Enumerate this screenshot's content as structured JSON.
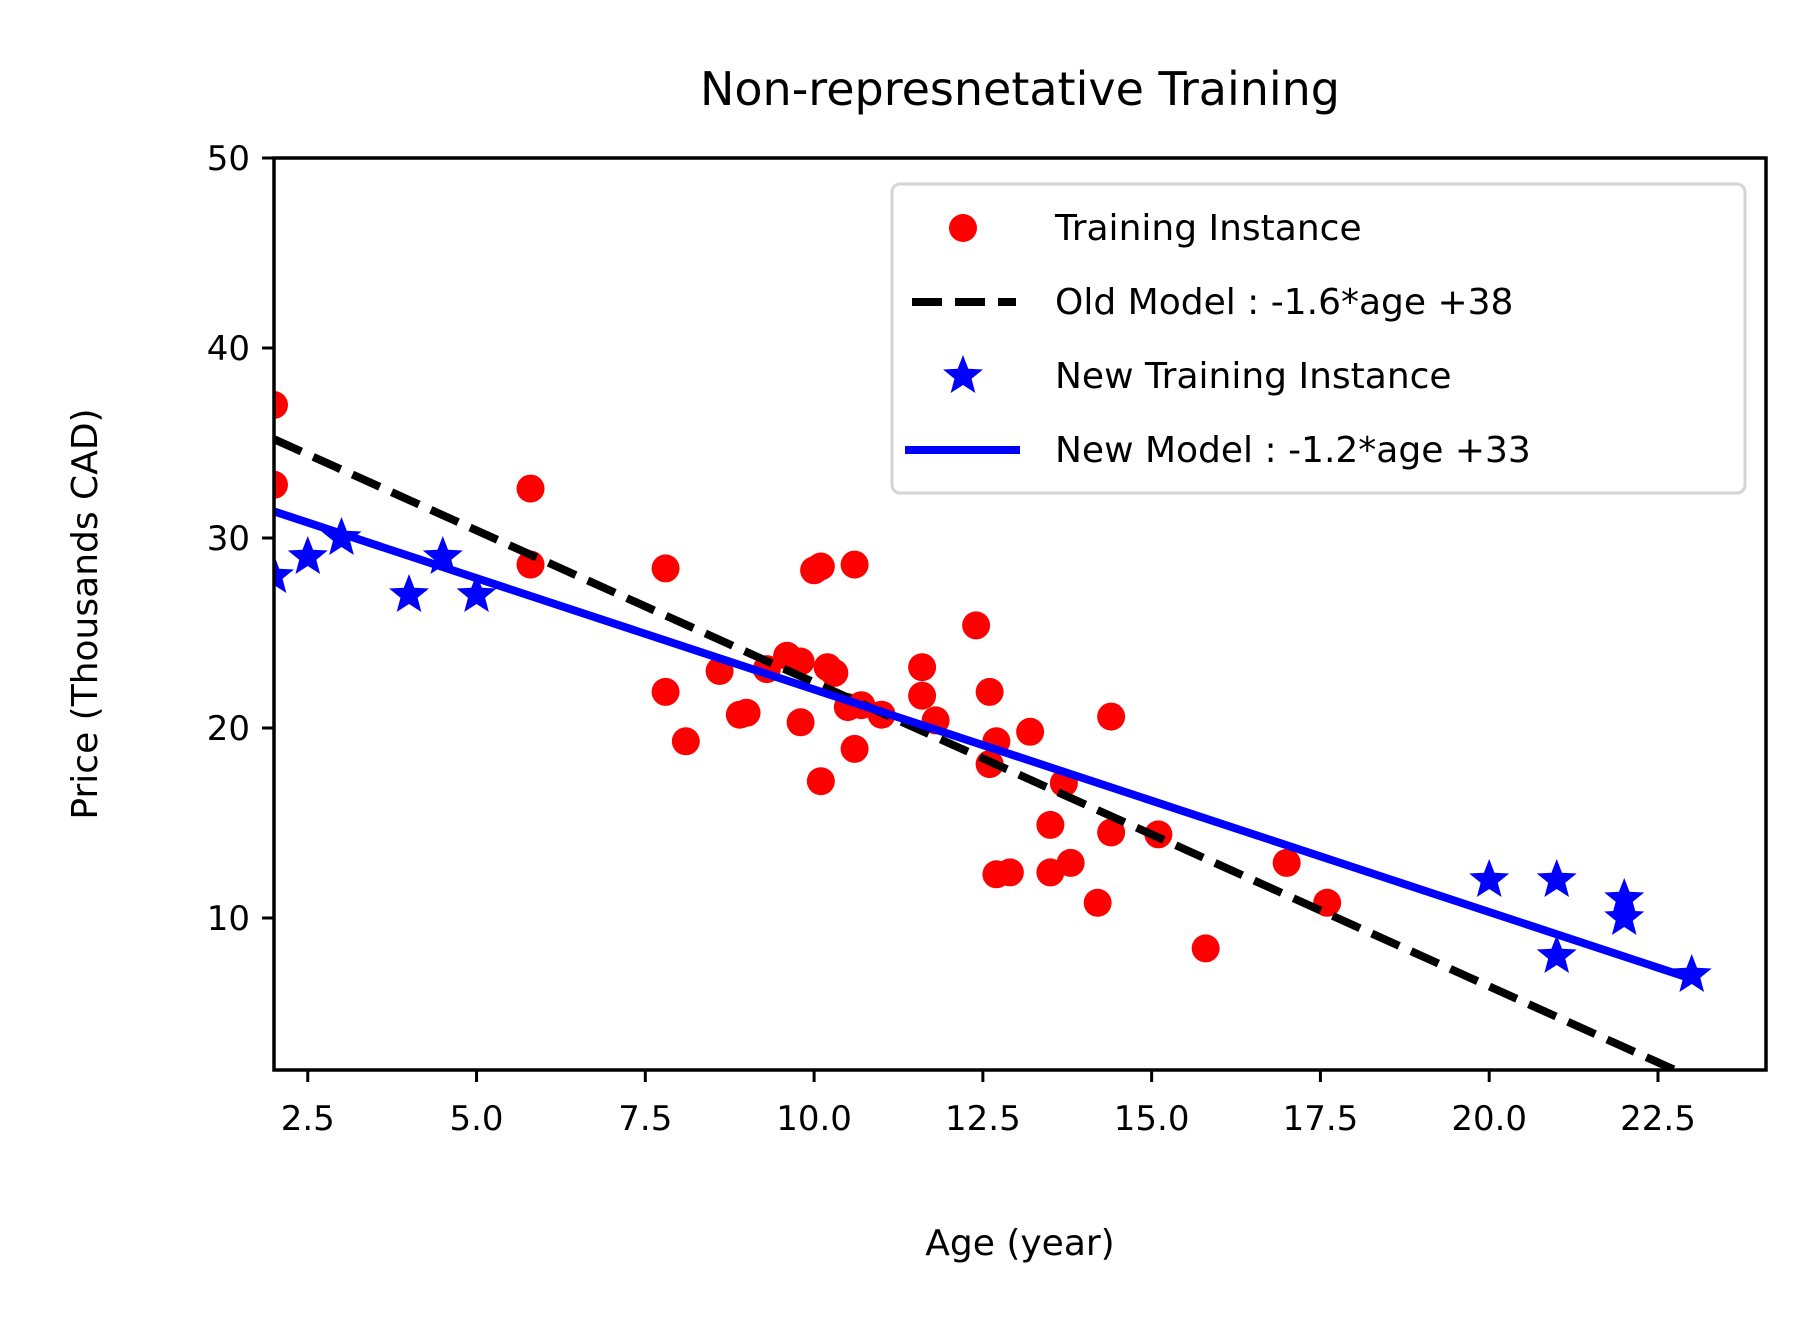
{
  "chart_data": {
    "type": "scatter",
    "title": "Non-represnetative Training",
    "xlabel": "Age (year)",
    "ylabel": "Price (Thousands CAD)",
    "xlim": [
      2.0,
      24.1
    ],
    "ylim": [
      2,
      50
    ],
    "xticks": [
      2.5,
      5.0,
      7.5,
      10.0,
      12.5,
      15.0,
      17.5,
      20.0,
      22.5
    ],
    "xtick_labels": [
      "2.5",
      "5.0",
      "7.5",
      "10.0",
      "12.5",
      "15.0",
      "17.5",
      "20.0",
      "22.5"
    ],
    "yticks": [
      10,
      20,
      30,
      40,
      50
    ],
    "ytick_labels": [
      "10",
      "20",
      "30",
      "40",
      "50"
    ],
    "grid": false,
    "legend_position": "top-right",
    "series": [
      {
        "name": "Training Instance",
        "kind": "points",
        "marker": "circle",
        "color": "#ff0000",
        "points": [
          [
            2.0,
            37.0
          ],
          [
            2.0,
            32.8
          ],
          [
            5.8,
            32.6
          ],
          [
            5.8,
            28.6
          ],
          [
            7.8,
            28.4
          ],
          [
            7.8,
            21.9
          ],
          [
            8.1,
            19.3
          ],
          [
            8.6,
            23.0
          ],
          [
            8.9,
            20.7
          ],
          [
            9.0,
            20.8
          ],
          [
            9.3,
            23.1
          ],
          [
            9.6,
            23.8
          ],
          [
            9.8,
            23.5
          ],
          [
            9.8,
            20.3
          ],
          [
            10.0,
            28.3
          ],
          [
            10.1,
            28.5
          ],
          [
            10.1,
            17.2
          ],
          [
            10.2,
            23.2
          ],
          [
            10.3,
            22.9
          ],
          [
            10.5,
            21.1
          ],
          [
            10.6,
            18.9
          ],
          [
            10.6,
            28.6
          ],
          [
            10.7,
            21.2
          ],
          [
            11.0,
            20.7
          ],
          [
            11.6,
            23.2
          ],
          [
            11.6,
            21.7
          ],
          [
            11.8,
            20.4
          ],
          [
            12.4,
            25.4
          ],
          [
            12.6,
            21.9
          ],
          [
            12.6,
            18.1
          ],
          [
            12.7,
            19.3
          ],
          [
            12.7,
            12.3
          ],
          [
            12.9,
            12.4
          ],
          [
            13.2,
            19.8
          ],
          [
            13.5,
            14.9
          ],
          [
            13.5,
            12.4
          ],
          [
            13.7,
            17.1
          ],
          [
            13.8,
            12.9
          ],
          [
            14.2,
            10.8
          ],
          [
            14.4,
            14.5
          ],
          [
            14.4,
            20.6
          ],
          [
            15.1,
            14.4
          ],
          [
            15.8,
            8.4
          ],
          [
            17.0,
            12.9
          ],
          [
            17.6,
            10.8
          ]
        ]
      },
      {
        "name": "Old Model : -1.6*age +38",
        "kind": "line",
        "style": "dashed",
        "color": "#000000",
        "x": [
          2.0,
          23.0
        ],
        "y": [
          35.2,
          1.6
        ]
      },
      {
        "name": "New Training Instance",
        "kind": "points",
        "marker": "star",
        "color": "#0000ff",
        "points": [
          [
            2.0,
            28.0
          ],
          [
            2.5,
            29.0
          ],
          [
            3.0,
            30.0
          ],
          [
            4.0,
            27.0
          ],
          [
            4.5,
            29.0
          ],
          [
            5.0,
            27.0
          ],
          [
            20.0,
            12.0
          ],
          [
            21.0,
            12.0
          ],
          [
            21.0,
            8.0
          ],
          [
            22.0,
            11.0
          ],
          [
            22.0,
            10.0
          ],
          [
            23.0,
            7.0
          ]
        ]
      },
      {
        "name": "New Model : -1.2*age +33",
        "kind": "line",
        "style": "solid",
        "color": "#0000ff",
        "x": [
          2.0,
          23.0
        ],
        "y": [
          31.4,
          6.8
        ]
      }
    ]
  }
}
